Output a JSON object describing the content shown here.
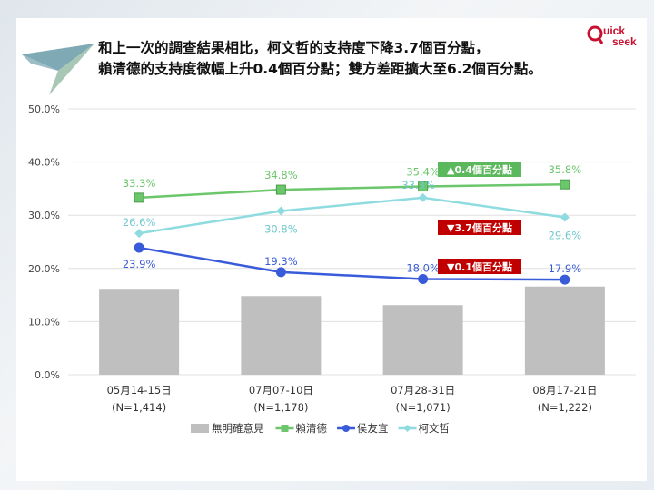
{
  "title": {
    "line1": "和上一次的調查結果相比，柯文哲的支持度下降3.7個百分點，",
    "line2": "賴清德的支持度微幅上升0.4個百分點；雙方差距擴大至6.2個百分點。"
  },
  "logo": {
    "text": "Quick seek",
    "color": "#c8102e"
  },
  "chart_data": {
    "type": "bar+line",
    "categories": [
      "05月14-15日\n(N=1,414)",
      "07月07-10日\n(N=1,178)",
      "07月28-31日\n(N=1,071)",
      "08月17-21日\n(N=1,222)"
    ],
    "category_lines": [
      [
        "05月14-15日",
        "(N=1,414)"
      ],
      [
        "07月07-10日",
        "(N=1,178)"
      ],
      [
        "07月28-31日",
        "(N=1,071)"
      ],
      [
        "08月17-21日",
        "(N=1,222)"
      ]
    ],
    "ylim": [
      0,
      50
    ],
    "yticks": [
      "0.0%",
      "10.0%",
      "20.0%",
      "30.0%",
      "40.0%",
      "50.0%"
    ],
    "grid": true,
    "legend_position": "bottom",
    "series": [
      {
        "name": "無明確意見",
        "kind": "bar",
        "color": "#bfbfbf",
        "values": [
          16.0,
          14.8,
          13.1,
          16.6
        ],
        "labels": []
      },
      {
        "name": "賴清德",
        "kind": "line",
        "marker": "square",
        "color": "#6cc66c",
        "values": [
          33.3,
          34.8,
          35.4,
          35.8
        ],
        "labels": [
          "33.3%",
          "34.8%",
          "35.4%",
          "35.8%"
        ]
      },
      {
        "name": "侯友宜",
        "kind": "line",
        "marker": "circle",
        "color": "#3a5bd9",
        "values": [
          23.9,
          19.3,
          18.0,
          17.9
        ],
        "labels": [
          "23.9%",
          "19.3%",
          "18.0%",
          "17.9%"
        ]
      },
      {
        "name": "柯文哲",
        "kind": "line",
        "marker": "diamond",
        "color": "#8edce0",
        "values": [
          26.6,
          30.8,
          33.3,
          29.6
        ],
        "labels": [
          "26.6%",
          "30.8%",
          "33.3%",
          "29.6%"
        ]
      }
    ],
    "annotations": [
      {
        "text": "▲0.4個百分點",
        "color": "#5cb85c"
      },
      {
        "text": "▼3.7個百分點",
        "color": "#c00000"
      },
      {
        "text": "▼0.1個百分點",
        "color": "#c00000"
      }
    ]
  }
}
